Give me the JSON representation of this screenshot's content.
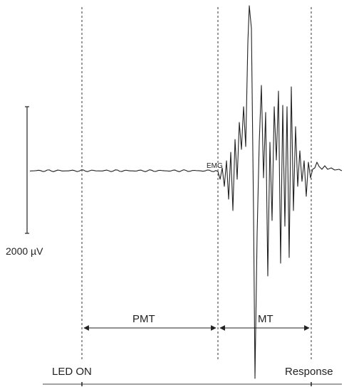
{
  "figure": {
    "scale_bar_label": "2000 µV",
    "emg_label": "EMG",
    "pmt_label": "PMT",
    "mt_label": "MT",
    "led_on_label": "LED ON",
    "response_label": "Response"
  },
  "colors": {
    "trace": "#222222",
    "guide": "#333333",
    "text": "#222222"
  }
}
